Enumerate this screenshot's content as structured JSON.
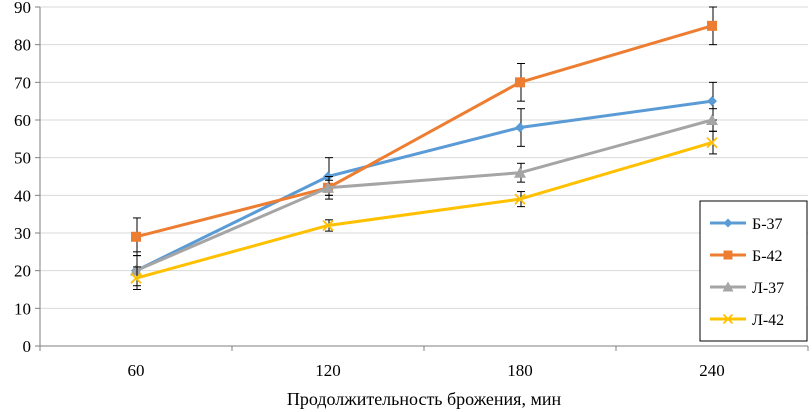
{
  "chart_data": {
    "type": "line",
    "title": "",
    "xlabel": "Продолжительность брожения, мин",
    "ylabel": "",
    "categories": [
      "60",
      "120",
      "180",
      "240"
    ],
    "yticks": [
      "0",
      "10",
      "20",
      "30",
      "40",
      "50",
      "60",
      "70",
      "80",
      "90"
    ],
    "ylim": [
      0,
      90
    ],
    "grid": true,
    "legend_position": "right",
    "series": [
      {
        "name": "Б-37",
        "color": "#5b9bd5",
        "marker": "diamond",
        "values": [
          20,
          45,
          58,
          65
        ],
        "errors": [
          5,
          5,
          5,
          5
        ]
      },
      {
        "name": "Б-42",
        "color": "#ed7d31",
        "marker": "square",
        "values": [
          29,
          42,
          70,
          85
        ],
        "errors": [
          5,
          2,
          5,
          5
        ]
      },
      {
        "name": "Л-37",
        "color": "#a5a5a5",
        "marker": "triangle",
        "values": [
          20,
          42,
          46,
          60
        ],
        "errors": [
          4,
          3,
          2.5,
          3
        ]
      },
      {
        "name": "Л-42",
        "color": "#ffc000",
        "marker": "x",
        "values": [
          18,
          32,
          39,
          54
        ],
        "errors": [
          3,
          1.5,
          2,
          3
        ]
      }
    ]
  }
}
